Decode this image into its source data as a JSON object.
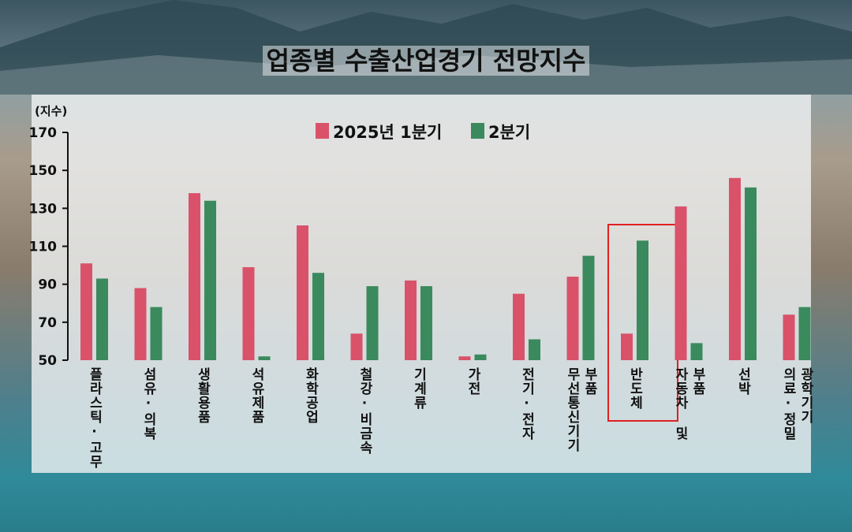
{
  "title": "업종별 수출산업경기 전망지수",
  "chart_data": {
    "type": "bar",
    "title": "업종별 수출산업경기 전망지수",
    "ylabel": "(지수)",
    "ylim": [
      50,
      170
    ],
    "yticks": [
      50,
      70,
      90,
      110,
      130,
      150,
      170
    ],
    "legend_position": "top-center",
    "categories": [
      [
        "플라스틱·고무"
      ],
      [
        "섬유·의복"
      ],
      [
        "생활용품"
      ],
      [
        "석유제품"
      ],
      [
        "화학공업"
      ],
      [
        "철강·비금속"
      ],
      [
        "기계류"
      ],
      [
        "가전"
      ],
      [
        "전기·전자"
      ],
      [
        "무선통신기기",
        "부품"
      ],
      [
        "반도체"
      ],
      [
        "자동차 및",
        "부품"
      ],
      [
        "선박"
      ],
      [
        "의료·정밀",
        "광학기기"
      ]
    ],
    "series": [
      {
        "name": "2025년 1분기",
        "color": "#d9526a",
        "values": [
          101,
          88,
          138,
          99,
          121,
          64,
          92,
          52,
          85,
          94,
          64,
          131,
          146,
          74
        ]
      },
      {
        "name": "2분기",
        "color": "#3a8a5e",
        "values": [
          93,
          78,
          134,
          52,
          96,
          89,
          89,
          53,
          61,
          105,
          113,
          59,
          141,
          78
        ]
      }
    ],
    "highlight": {
      "category": "반도체",
      "color": "#e02020"
    }
  }
}
